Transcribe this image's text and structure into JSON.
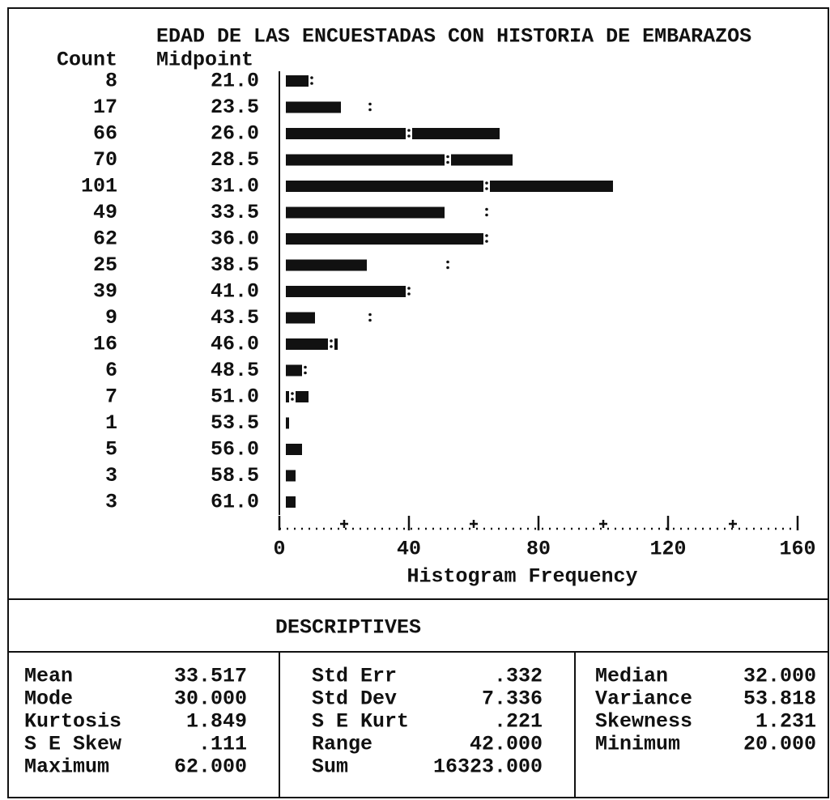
{
  "chart_data": {
    "type": "hbar",
    "title": "EDAD DE LAS ENCUESTADAS CON HISTORIA DE EMBARAZOS",
    "count_header": "Count",
    "midpoint_header": "Midpoint",
    "categories": [
      "21.0",
      "23.5",
      "26.0",
      "28.5",
      "31.0",
      "33.5",
      "36.0",
      "38.5",
      "41.0",
      "43.5",
      "46.0",
      "48.5",
      "51.0",
      "53.5",
      "56.0",
      "58.5",
      "61.0"
    ],
    "values": [
      8,
      17,
      66,
      70,
      101,
      49,
      62,
      25,
      39,
      9,
      16,
      6,
      7,
      1,
      5,
      3,
      3
    ],
    "normal_curve": [
      10,
      28,
      40,
      52,
      64,
      64,
      64,
      52,
      40,
      28,
      16,
      8,
      4,
      null,
      null,
      null,
      null
    ],
    "color": "#111111",
    "xlim": [
      0,
      160
    ],
    "xticks": [
      0,
      40,
      80,
      120,
      160
    ],
    "xminor": [
      20,
      60,
      100,
      140
    ],
    "xlabel": "Histogram Frequency"
  },
  "descriptives": {
    "title": "DESCRIPTIVES",
    "columns": [
      [
        [
          "Mean",
          "33.517"
        ],
        [
          "Mode",
          "30.000"
        ],
        [
          "Kurtosis",
          "1.849"
        ],
        [
          "S E Skew",
          ".111"
        ],
        [
          "Maximum",
          "62.000"
        ]
      ],
      [
        [
          "Std Err",
          ".332"
        ],
        [
          "Std Dev",
          "7.336"
        ],
        [
          "S E Kurt",
          ".221"
        ],
        [
          "Range",
          "42.000"
        ],
        [
          "Sum",
          "16323.000"
        ]
      ],
      [
        [
          "Median",
          "32.000"
        ],
        [
          "Variance",
          "53.818"
        ],
        [
          "Skewness",
          "1.231"
        ],
        [
          "Minimum",
          "20.000"
        ]
      ]
    ]
  }
}
